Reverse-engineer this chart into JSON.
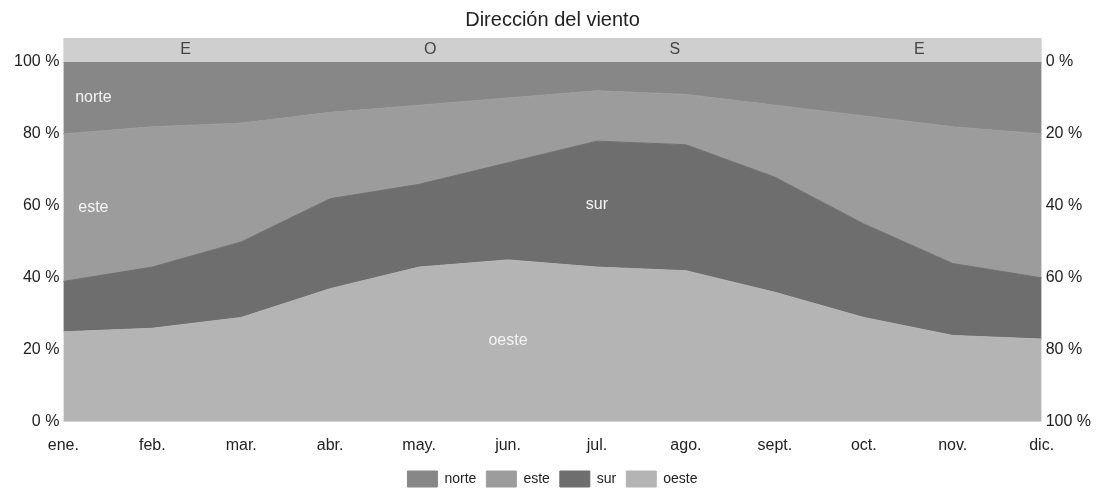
{
  "chart_data": {
    "type": "area",
    "title": "Dirección del viento",
    "stacked": true,
    "categories": [
      "ene.",
      "feb.",
      "mar.",
      "abr.",
      "may.",
      "jun.",
      "jul.",
      "ago.",
      "sept.",
      "oct.",
      "nov.",
      "dic."
    ],
    "series": [
      {
        "name": "oeste",
        "color": "#b4b4b4",
        "values": [
          25,
          26,
          29,
          37,
          43,
          45,
          43,
          42,
          36,
          29,
          24,
          23
        ]
      },
      {
        "name": "sur",
        "color": "#6e6e6e",
        "values": [
          14,
          17,
          21,
          25,
          23,
          27,
          35,
          35,
          32,
          26,
          20,
          17
        ]
      },
      {
        "name": "este",
        "color": "#9c9c9c",
        "values": [
          41,
          39,
          33,
          24,
          22,
          18,
          14,
          14,
          20,
          30,
          38,
          40
        ]
      },
      {
        "name": "norte",
        "color": "#878787",
        "values": [
          20,
          18,
          17,
          14,
          12,
          10,
          8,
          9,
          12,
          15,
          18,
          20
        ]
      }
    ],
    "ylim": [
      0,
      100
    ],
    "yticks": [
      {
        "value": 0,
        "label": "0 %"
      },
      {
        "value": 20,
        "label": "20 %"
      },
      {
        "value": 40,
        "label": "40 %"
      },
      {
        "value": 60,
        "label": "60 %"
      },
      {
        "value": 80,
        "label": "80 %"
      },
      {
        "value": 100,
        "label": "100 %"
      }
    ],
    "y2lim": [
      100,
      0
    ],
    "y2ticks": [
      {
        "value": 0,
        "label": "0 %"
      },
      {
        "value": 20,
        "label": "20 %"
      },
      {
        "value": 40,
        "label": "40 %"
      },
      {
        "value": 60,
        "label": "60 %"
      },
      {
        "value": 80,
        "label": "80 %"
      },
      {
        "value": 100,
        "label": "100 %"
      }
    ],
    "annotations": [
      "E",
      "O",
      "S",
      "E"
    ],
    "legend": "bottom",
    "grid": false
  }
}
